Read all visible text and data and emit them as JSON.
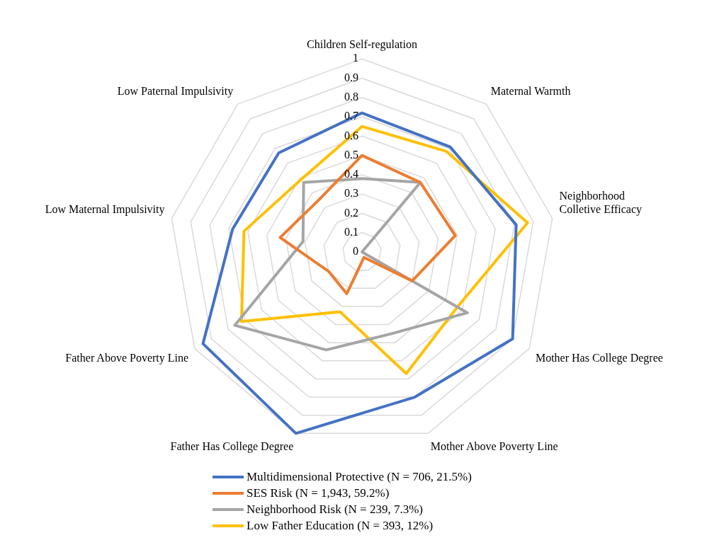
{
  "chart_data": {
    "type": "radar",
    "categories": [
      "Children Self-regulation",
      "Maternal Warmth",
      "Neighborhood Colletive Efficacy",
      "Mother Has College Degree",
      "Mother Above Poverty Line",
      "Father Has College Degree",
      "Father Above Poverty Line",
      "Low Maternal Impulsivity",
      "Low Paternal Impulsivity"
    ],
    "series": [
      {
        "name": "Multidimensional Protective (N = 706, 21.5%)",
        "color": "#4472c4",
        "values": [
          0.72,
          0.71,
          0.81,
          0.9,
          0.8,
          1.0,
          0.95,
          0.68,
          0.67
        ]
      },
      {
        "name": "SES Risk (N = 1,943, 59.2%)",
        "color": "#ed7d31",
        "values": [
          0.5,
          0.47,
          0.49,
          0.3,
          0.03,
          0.23,
          0.2,
          0.43,
          0.35
        ]
      },
      {
        "name": "Neighborhood Risk (N = 239, 7.3%)",
        "color": "#a5a5a5",
        "values": [
          0.38,
          0.47,
          0,
          0.63,
          0.45,
          0.54,
          0.76,
          0.31,
          0.47
        ]
      },
      {
        "name": "Low Father Education (N = 393, 12%)",
        "color": "#ffc000",
        "values": [
          0.65,
          0.68,
          0.87,
          0.57,
          0.67,
          0.33,
          0.72,
          0.62,
          0.49
        ]
      }
    ],
    "ylim": [
      0,
      1
    ],
    "yticks": [
      0,
      0.1,
      0.2,
      0.3,
      0.4,
      0.5,
      0.6,
      0.7,
      0.8,
      0.9,
      1
    ],
    "grid": true,
    "legend": "bottom",
    "marker": "none",
    "line_style": "solid"
  }
}
